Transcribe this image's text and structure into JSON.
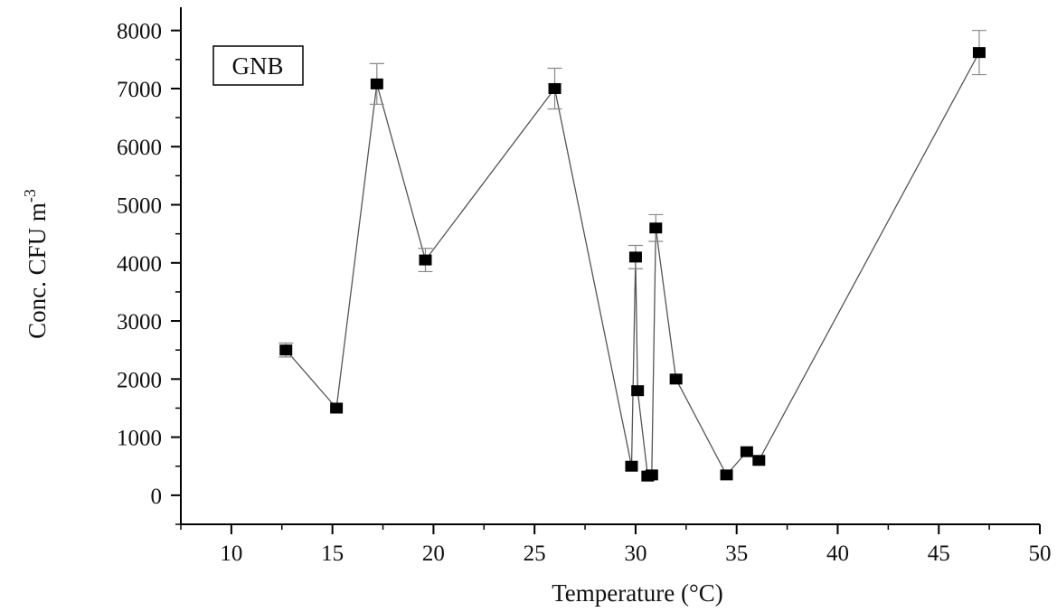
{
  "chart_data": {
    "type": "scatter",
    "legend_label": "GNB",
    "legend_position": "top-left",
    "xlabel": "Temperature (°C)",
    "ylabel": {
      "base": "Conc. CFU m",
      "superscript": "-3"
    },
    "xlim": [
      7.5,
      50
    ],
    "ylim": [
      -500,
      8400
    ],
    "xticks": [
      "10",
      "15",
      "20",
      "25",
      "30",
      "35",
      "40",
      "45",
      "50"
    ],
    "yticks": [
      "0",
      "1000",
      "2000",
      "3000",
      "4000",
      "5000",
      "6000",
      "7000",
      "8000"
    ],
    "grid": false,
    "line_connected": true,
    "marker": "square",
    "colors": {
      "line": "#555555",
      "marker": "#000000",
      "error_bar": "#888888",
      "axis": "#000000"
    },
    "series": [
      {
        "x": [
          12.7,
          15.2,
          17.2,
          19.6,
          26.0,
          29.8,
          30.0,
          30.1,
          30.6,
          30.8,
          31.0,
          32.0,
          34.5,
          35.5,
          36.1,
          47.0
        ],
        "y": [
          2500,
          1500,
          7080,
          4050,
          7000,
          500,
          4100,
          1800,
          330,
          350,
          4600,
          2000,
          350,
          750,
          600,
          7620
        ],
        "err": [
          120,
          0,
          350,
          200,
          350,
          0,
          200,
          0,
          0,
          0,
          230,
          0,
          0,
          0,
          0,
          380
        ]
      }
    ]
  }
}
